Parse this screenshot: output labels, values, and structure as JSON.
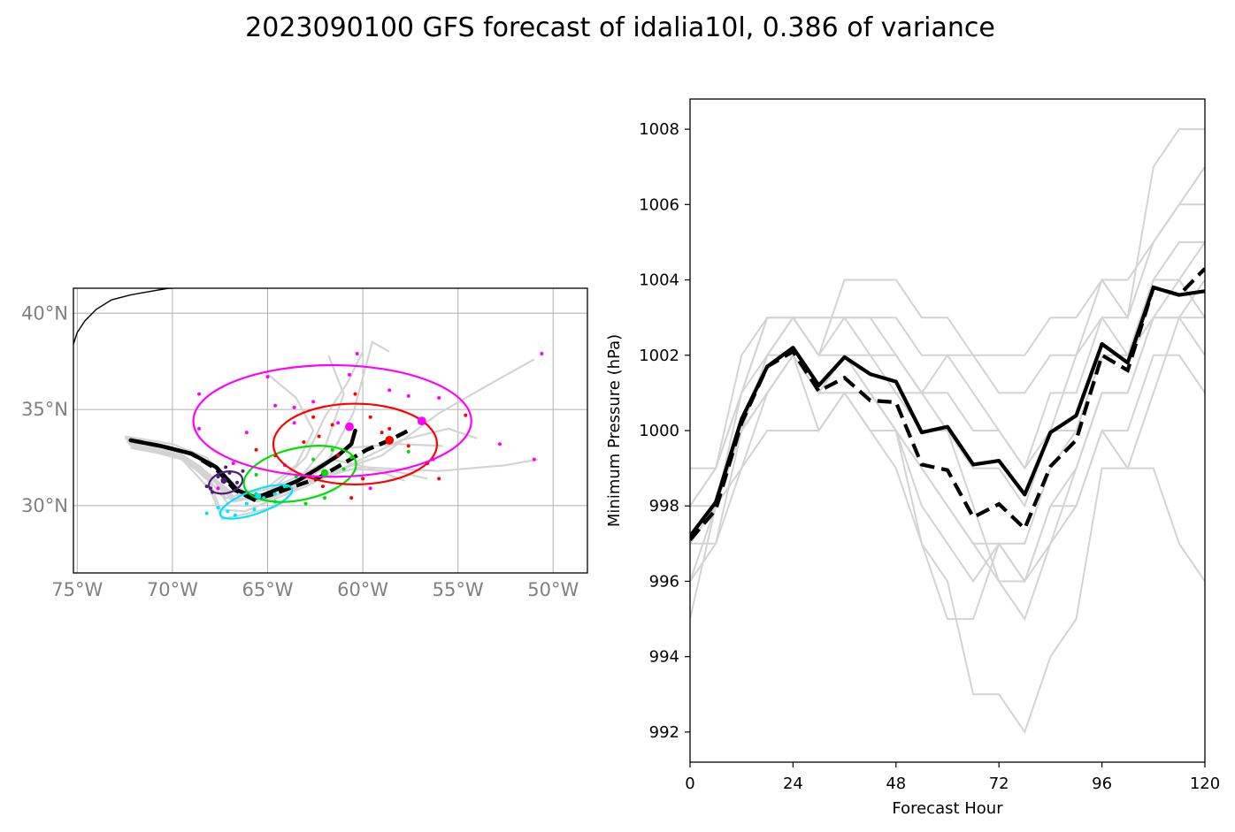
{
  "title": "2023090100 GFS forecast of idalia10l, 0.386 of variance",
  "colors": {
    "ensemble": "#d3d3d3",
    "mean": "#000000",
    "grid": "#b0b0b0",
    "coast": "#000000",
    "ellipses": [
      "#4b1e7a",
      "#00e5ff",
      "#00dd00",
      "#ff0000",
      "#ff00ff"
    ]
  },
  "map": {
    "lon_range": [
      -75.2,
      -48.2
    ],
    "lat_range": [
      26.5,
      41.3
    ],
    "lon_ticks": [
      -75,
      -70,
      -65,
      -60,
      -55,
      -50
    ],
    "lat_ticks": [
      30,
      35,
      40
    ],
    "lon_tick_labels": [
      "75°W",
      "70°W",
      "65°W",
      "60°W",
      "55°W",
      "50°W"
    ],
    "lat_tick_labels": [
      "30°N",
      "35°N",
      "40°N"
    ],
    "coastline": [
      [
        -75.2,
        38.4
      ],
      [
        -75.0,
        39.0
      ],
      [
        -74.6,
        39.6
      ],
      [
        -74.0,
        40.2
      ],
      [
        -73.2,
        40.7
      ],
      [
        -72.2,
        40.95
      ],
      [
        -71.4,
        41.1
      ],
      [
        -70.2,
        41.3
      ]
    ],
    "coastline2": [
      [
        -70.8,
        41.3
      ],
      [
        -70.0,
        41.3
      ]
    ],
    "ensemble_tracks": [
      [
        [
          -72.5,
          33.6
        ],
        [
          -70.0,
          33.2
        ],
        [
          -68.2,
          32.5
        ],
        [
          -66.6,
          31.0
        ],
        [
          -65.5,
          30.2
        ],
        [
          -63.8,
          30.8
        ],
        [
          -62.0,
          32.0
        ],
        [
          -60.5,
          34.8
        ],
        [
          -59.5,
          38.5
        ],
        [
          -58.6,
          38.0
        ]
      ],
      [
        [
          -72.4,
          33.4
        ],
        [
          -70.0,
          33.0
        ],
        [
          -68.0,
          32.2
        ],
        [
          -66.5,
          30.6
        ],
        [
          -64.5,
          30.6
        ],
        [
          -62.0,
          31.6
        ],
        [
          -59.0,
          32.6
        ],
        [
          -56.0,
          34.8
        ],
        [
          -53.0,
          36.5
        ],
        [
          -51.0,
          37.6
        ]
      ],
      [
        [
          -72.4,
          33.3
        ],
        [
          -69.8,
          32.8
        ],
        [
          -68.0,
          31.6
        ],
        [
          -67.2,
          30.4
        ],
        [
          -65.0,
          30.3
        ],
        [
          -62.5,
          31.5
        ],
        [
          -60.0,
          32.0
        ],
        [
          -56.0,
          31.8
        ],
        [
          -52.5,
          32.1
        ],
        [
          -50.8,
          32.4
        ]
      ],
      [
        [
          -72.3,
          33.2
        ],
        [
          -69.8,
          32.6
        ],
        [
          -68.1,
          31.4
        ],
        [
          -67.0,
          30.0
        ],
        [
          -65.5,
          30.0
        ],
        [
          -63.0,
          31.0
        ],
        [
          -60.5,
          32.2
        ],
        [
          -58.0,
          33.4
        ],
        [
          -55.5,
          34.0
        ],
        [
          -54.0,
          33.5
        ]
      ],
      [
        [
          -72.2,
          33.0
        ],
        [
          -69.5,
          32.5
        ],
        [
          -68.0,
          31.2
        ],
        [
          -67.5,
          29.8
        ],
        [
          -66.2,
          29.7
        ],
        [
          -64.0,
          30.6
        ],
        [
          -62.0,
          33.0
        ],
        [
          -61.0,
          35.8
        ],
        [
          -61.8,
          37.8
        ]
      ],
      [
        [
          -72.5,
          33.5
        ],
        [
          -70.2,
          33.1
        ],
        [
          -68.5,
          32.0
        ],
        [
          -66.8,
          30.2
        ],
        [
          -65.0,
          30.6
        ],
        [
          -63.0,
          32.5
        ],
        [
          -62.0,
          34.6
        ],
        [
          -60.8,
          36.4
        ],
        [
          -60.0,
          38.0
        ]
      ],
      [
        [
          -72.3,
          33.3
        ],
        [
          -69.8,
          32.8
        ],
        [
          -68.2,
          31.6
        ],
        [
          -66.8,
          30.5
        ],
        [
          -64.8,
          30.9
        ],
        [
          -62.8,
          31.8
        ],
        [
          -60.8,
          33.0
        ],
        [
          -58.2,
          33.2
        ],
        [
          -55.8,
          33.1
        ]
      ],
      [
        [
          -72.2,
          33.1
        ],
        [
          -69.5,
          32.4
        ],
        [
          -68.0,
          30.8
        ],
        [
          -67.4,
          29.3
        ],
        [
          -66.0,
          29.6
        ],
        [
          -64.4,
          30.0
        ],
        [
          -63.0,
          31.4
        ],
        [
          -61.6,
          32.4
        ],
        [
          -59.8,
          32.0
        ],
        [
          -57.8,
          31.3
        ]
      ],
      [
        [
          -72.4,
          33.4
        ],
        [
          -70.0,
          32.9
        ],
        [
          -68.3,
          31.8
        ],
        [
          -66.9,
          30.7
        ],
        [
          -65.2,
          30.8
        ],
        [
          -63.5,
          32.1
        ],
        [
          -62.6,
          33.9
        ],
        [
          -63.5,
          35.6
        ],
        [
          -65.2,
          37.0
        ]
      ],
      [
        [
          -72.3,
          33.2
        ],
        [
          -69.9,
          32.7
        ],
        [
          -68.1,
          31.5
        ],
        [
          -66.7,
          30.3
        ],
        [
          -64.9,
          30.4
        ],
        [
          -62.9,
          31.2
        ],
        [
          -60.6,
          31.9
        ],
        [
          -58.4,
          31.8
        ],
        [
          -56.6,
          31.4
        ]
      ]
    ],
    "mean_track": [
      [
        -72.2,
        33.4
      ],
      [
        -70.6,
        33.1
      ],
      [
        -69.0,
        32.7
      ],
      [
        -67.7,
        32.0
      ],
      [
        -66.6,
        30.8
      ],
      [
        -65.6,
        30.4
      ],
      [
        -64.6,
        30.8
      ],
      [
        -63.4,
        31.3
      ],
      [
        -62.4,
        31.9
      ],
      [
        -61.3,
        32.6
      ],
      [
        -60.6,
        33.2
      ],
      [
        -60.4,
        33.9
      ]
    ],
    "mean_track_dashed": [
      [
        -72.2,
        33.4
      ],
      [
        -70.6,
        33.1
      ],
      [
        -69.0,
        32.7
      ],
      [
        -67.7,
        31.9
      ],
      [
        -66.7,
        30.8
      ],
      [
        -65.7,
        30.3
      ],
      [
        -64.7,
        30.6
      ],
      [
        -63.6,
        31.0
      ],
      [
        -62.4,
        31.4
      ],
      [
        -61.0,
        32.2
      ],
      [
        -59.8,
        32.9
      ],
      [
        -58.6,
        33.4
      ],
      [
        -57.4,
        34.0
      ]
    ],
    "ellipses": [
      {
        "lon": -67.2,
        "lat": 31.2,
        "rlon": 0.9,
        "rlat": 0.55,
        "angle": 15
      },
      {
        "lon": -65.6,
        "lat": 30.2,
        "rlon": 2.0,
        "rlat": 0.6,
        "angle": 20
      },
      {
        "lon": -63.3,
        "lat": 31.65,
        "rlon": 3.0,
        "rlat": 1.35,
        "angle": 12
      },
      {
        "lon": -60.4,
        "lat": 33.2,
        "rlon": 4.3,
        "rlat": 2.1,
        "angle": 0
      },
      {
        "lon": -61.6,
        "lat": 34.4,
        "rlon": 7.3,
        "rlat": 2.9,
        "angle": 0
      }
    ],
    "ellipse_centers": [
      {
        "lon": -67.3,
        "lat": 31.3,
        "size": 5
      },
      {
        "lon": -65.5,
        "lat": 30.5,
        "size": 5
      },
      {
        "lon": -62.0,
        "lat": 31.7,
        "size": 6
      },
      {
        "lon": -58.6,
        "lat": 33.4,
        "size": 7
      },
      {
        "lon": -56.9,
        "lat": 34.4,
        "size": 7
      },
      {
        "lon": -60.7,
        "lat": 34.1,
        "size": 7
      }
    ],
    "scatter_points": [
      {
        "ci": 0,
        "pts": [
          [
            -68.0,
            30.9
          ],
          [
            -67.6,
            31.5
          ],
          [
            -67.0,
            31.7
          ],
          [
            -66.6,
            31.2
          ],
          [
            -67.9,
            30.7
          ],
          [
            -68.2,
            31.0
          ],
          [
            -66.3,
            31.8
          ],
          [
            -67.2,
            32.0
          ]
        ]
      },
      {
        "ci": 1,
        "pts": [
          [
            -68.2,
            29.6
          ],
          [
            -67.1,
            29.7
          ],
          [
            -66.1,
            30.1
          ],
          [
            -65.2,
            30.4
          ],
          [
            -64.6,
            30.6
          ],
          [
            -66.7,
            29.5
          ],
          [
            -67.6,
            29.9
          ],
          [
            -64.1,
            31.0
          ],
          [
            -65.7,
            29.8
          ]
        ]
      },
      {
        "ci": 2,
        "pts": [
          [
            -65.6,
            31.6
          ],
          [
            -64.6,
            30.2
          ],
          [
            -63.5,
            31.5
          ],
          [
            -62.6,
            32.4
          ],
          [
            -61.6,
            32.9
          ],
          [
            -62.0,
            30.4
          ],
          [
            -61.0,
            31.9
          ],
          [
            -63.0,
            30.1
          ],
          [
            -60.6,
            32.5
          ],
          [
            -64.0,
            31.0
          ],
          [
            -57.6,
            32.8
          ],
          [
            -65.6,
            30.6
          ]
        ]
      },
      {
        "ci": 3,
        "pts": [
          [
            -63.1,
            33.3
          ],
          [
            -62.3,
            33.6
          ],
          [
            -61.6,
            34.2
          ],
          [
            -60.4,
            35.8
          ],
          [
            -59.6,
            34.6
          ],
          [
            -61.3,
            32.6
          ],
          [
            -59.0,
            33.8
          ],
          [
            -57.6,
            33.1
          ],
          [
            -56.0,
            31.4
          ],
          [
            -54.6,
            34.7
          ],
          [
            -64.6,
            32.6
          ],
          [
            -62.6,
            34.6
          ],
          [
            -60.0,
            31.4
          ],
          [
            -58.6,
            34.0
          ],
          [
            -56.6,
            32.2
          ],
          [
            -60.6,
            30.4
          ],
          [
            -65.6,
            32.9
          ],
          [
            -62.1,
            31.0
          ]
        ]
      },
      {
        "ci": 4,
        "pts": [
          [
            -68.6,
            35.8
          ],
          [
            -64.6,
            35.2
          ],
          [
            -63.6,
            35.1
          ],
          [
            -61.3,
            34.3
          ],
          [
            -60.3,
            37.9
          ],
          [
            -57.6,
            35.7
          ],
          [
            -56.3,
            32.4
          ],
          [
            -50.6,
            37.9
          ],
          [
            -51.0,
            32.4
          ],
          [
            -52.8,
            33.2
          ],
          [
            -59.6,
            30.9
          ],
          [
            -62.6,
            35.4
          ],
          [
            -65.0,
            36.7
          ],
          [
            -68.6,
            34.0
          ],
          [
            -64.1,
            32.1
          ],
          [
            -56.0,
            35.6
          ],
          [
            -63.6,
            34.3
          ],
          [
            -60.7,
            36.8
          ],
          [
            -58.6,
            36.0
          ],
          [
            -66.1,
            33.8
          ],
          [
            -67.6,
            30.9
          ],
          [
            -66.8,
            32.2
          ]
        ]
      }
    ]
  },
  "chart_data": {
    "type": "line",
    "title": "",
    "xlabel": "Forecast Hour",
    "ylabel": "Minimum Pressure (hPa)",
    "xlim": [
      0,
      120
    ],
    "ylim": [
      991.2,
      1008.8
    ],
    "xticks": [
      0,
      24,
      48,
      72,
      96,
      120
    ],
    "yticks": [
      992,
      994,
      996,
      998,
      1000,
      1002,
      1004,
      1006,
      1008
    ],
    "x": [
      0,
      6,
      12,
      18,
      24,
      30,
      36,
      42,
      48,
      54,
      60,
      66,
      72,
      78,
      84,
      90,
      96,
      102,
      108,
      114,
      120
    ],
    "mean": [
      997.2,
      998.1,
      1000.3,
      1001.7,
      1002.2,
      1001.2,
      1001.95,
      1001.5,
      1001.3,
      999.95,
      1000.1,
      999.1,
      999.2,
      998.3,
      999.95,
      1000.4,
      1002.3,
      1001.8,
      1003.8,
      1003.6,
      1003.7
    ],
    "mean_dashed": [
      997.1,
      997.9,
      1000.2,
      1001.7,
      1002.1,
      1001.05,
      1001.4,
      1000.8,
      1000.75,
      999.1,
      998.95,
      997.7,
      998.05,
      997.4,
      999.05,
      999.75,
      1002.0,
      1001.6,
      1003.8,
      1003.6,
      1004.3
    ],
    "members": [
      [
        998,
        999,
        1001,
        1002,
        1003,
        1002,
        1003,
        1002,
        1002,
        1001,
        1001,
        1000,
        1000,
        999,
        1001,
        1001,
        1003,
        1002,
        1004,
        1004,
        1005
      ],
      [
        997,
        998,
        1000,
        1002,
        1002,
        1001,
        1002,
        1001,
        1001,
        1000,
        1000,
        999,
        999,
        998,
        1000,
        1000,
        1002,
        1002,
        1003,
        1003,
        1004
      ],
      [
        996,
        997,
        999,
        1001,
        1002,
        1001,
        1001,
        1001,
        1000,
        999,
        998,
        997,
        997,
        996,
        998,
        999,
        1001,
        1001,
        1003,
        1004,
        1003
      ],
      [
        995,
        998,
        1000,
        1002,
        1002,
        1001,
        1001,
        1000,
        999,
        997,
        995,
        995,
        997,
        996,
        997,
        998,
        1000,
        1000,
        1002,
        1002,
        1001
      ],
      [
        999,
        999,
        1002,
        1003,
        1003,
        1002,
        1004,
        1004,
        1004,
        1003,
        1003,
        1002,
        1002,
        1002,
        1003,
        1003,
        1004,
        1004,
        1005,
        1006,
        1007
      ],
      [
        998,
        998,
        1001,
        1003,
        1003,
        1003,
        1003,
        1003,
        1002,
        1001,
        1000,
        998,
        996,
        996,
        998,
        998,
        1000,
        999,
        1001,
        1003,
        1002
      ],
      [
        997,
        997,
        1000,
        1001,
        1002,
        1000,
        1001,
        1000,
        1000,
        997,
        996,
        993,
        993,
        992,
        994,
        995,
        999,
        999,
        999,
        997,
        996
      ],
      [
        997,
        998,
        1000,
        1002,
        1003,
        1002,
        1002,
        1002,
        1001,
        1001,
        1002,
        1001,
        1000,
        999,
        1000,
        1002,
        1004,
        1003,
        1007,
        1008,
        1008
      ],
      [
        998,
        999,
        1001,
        1003,
        1003,
        1003,
        1003,
        1003,
        1003,
        1002,
        1002,
        1002,
        1001,
        1001,
        1002,
        1002,
        1003,
        1003,
        1005,
        1006,
        1006
      ],
      [
        996,
        998,
        999,
        1000,
        1000,
        1000,
        1001,
        1001,
        1000,
        999,
        998,
        997,
        996,
        995,
        997,
        999,
        1001,
        1001,
        1003,
        1003,
        1003
      ],
      [
        997,
        998,
        1000,
        1001,
        1002,
        1001,
        1002,
        1001,
        1000,
        998,
        997,
        996,
        997,
        997,
        999,
        1000,
        1002,
        1002,
        1004,
        1005,
        1005
      ]
    ]
  }
}
